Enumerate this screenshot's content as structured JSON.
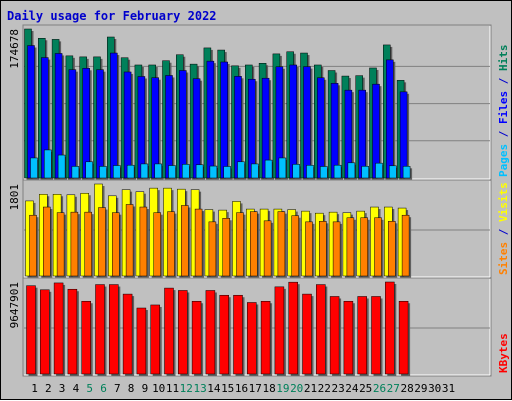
{
  "title": "Daily usage for February 2022",
  "colors": {
    "hits": "#00805a",
    "files": "#0000ff",
    "pages": "#00c0ff",
    "visits": "#ffff00",
    "sites": "#ff8000",
    "kbytes": "#ff0000",
    "title": "#0000cc",
    "weekend_label": "#00805a",
    "panel_bg": "#c0c0c0"
  },
  "chart_data": [
    {
      "type": "bar",
      "panel": "hits-files-pages",
      "ymax_label": "174678",
      "ylim": [
        0,
        174678
      ],
      "y_label_parts": [
        {
          "text": "Pages",
          "color": "#00c0ff"
        },
        {
          "text": " / ",
          "color": "#0000cc"
        },
        {
          "text": "Files",
          "color": "#0000ff"
        },
        {
          "text": " / ",
          "color": "#0000cc"
        },
        {
          "text": "Hits",
          "color": "#00805a"
        }
      ],
      "categories": [
        "1",
        "2",
        "3",
        "4",
        "5",
        "6",
        "7",
        "8",
        "9",
        "10",
        "11",
        "12",
        "13",
        "14",
        "15",
        "16",
        "17",
        "18",
        "19",
        "20",
        "21",
        "22",
        "23",
        "24",
        "25",
        "26",
        "27",
        "28",
        "29",
        "30",
        "31"
      ],
      "series": [
        {
          "name": "Hits",
          "values": [
            174678,
            163800,
            162500,
            143200,
            142000,
            142000,
            165300,
            141000,
            132500,
            132500,
            137500,
            144500,
            133500,
            152500,
            150000,
            131500,
            132500,
            134500,
            145500,
            148000,
            146500,
            132500,
            126000,
            119500,
            120000,
            129000,
            156000,
            114500,
            0,
            0,
            0
          ]
        },
        {
          "name": "Files",
          "values": [
            155300,
            141200,
            146000,
            127000,
            128600,
            127000,
            146500,
            124300,
            119000,
            117600,
            120200,
            126000,
            116400,
            137000,
            136000,
            119200,
            115800,
            117000,
            130400,
            132500,
            130600,
            117500,
            111000,
            103000,
            103000,
            110000,
            138500,
            101000,
            0,
            0,
            0
          ]
        },
        {
          "name": "Pages",
          "values": [
            23500,
            32900,
            26900,
            13600,
            19000,
            13600,
            14600,
            15000,
            16500,
            16500,
            14600,
            16000,
            15500,
            14000,
            13500,
            19000,
            16500,
            21000,
            23500,
            16000,
            14900,
            13500,
            15000,
            17800,
            13700,
            17400,
            14300,
            13700,
            0,
            0,
            0
          ]
        }
      ]
    },
    {
      "type": "bar",
      "panel": "visits-sites",
      "ymax_label": "1801",
      "ylim": [
        0,
        1801
      ],
      "y_label_parts": [
        {
          "text": "Sites",
          "color": "#ff8000"
        },
        {
          "text": " / ",
          "color": "#0000cc"
        },
        {
          "text": "Visits",
          "color": "#ffff00"
        }
      ],
      "categories": [
        "1",
        "2",
        "3",
        "4",
        "5",
        "6",
        "7",
        "8",
        "9",
        "10",
        "11",
        "12",
        "13",
        "14",
        "15",
        "16",
        "17",
        "18",
        "19",
        "20",
        "21",
        "22",
        "23",
        "24",
        "25",
        "26",
        "27",
        "28",
        "29",
        "30",
        "31"
      ],
      "series": [
        {
          "name": "Visits",
          "values": [
            1470,
            1600,
            1600,
            1590,
            1620,
            1801,
            1570,
            1690,
            1650,
            1720,
            1720,
            1700,
            1690,
            1300,
            1290,
            1460,
            1310,
            1310,
            1310,
            1300,
            1270,
            1230,
            1250,
            1240,
            1270,
            1350,
            1350,
            1330,
            0,
            0,
            0
          ]
        },
        {
          "name": "Sites",
          "values": [
            1190,
            1350,
            1240,
            1250,
            1250,
            1340,
            1240,
            1400,
            1350,
            1240,
            1260,
            1380,
            1310,
            1060,
            1130,
            1240,
            1260,
            1080,
            1260,
            1180,
            1060,
            1070,
            1060,
            1140,
            1140,
            1140,
            1070,
            1190,
            0,
            0,
            0
          ]
        }
      ]
    },
    {
      "type": "bar",
      "panel": "kbytes",
      "ymax_label": "9647901",
      "ylim": [
        0,
        9647901
      ],
      "y_label_parts": [
        {
          "text": "KBytes",
          "color": "#ff0000"
        }
      ],
      "categories": [
        "1",
        "2",
        "3",
        "4",
        "5",
        "6",
        "7",
        "8",
        "9",
        "10",
        "11",
        "12",
        "13",
        "14",
        "15",
        "16",
        "17",
        "18",
        "19",
        "20",
        "21",
        "22",
        "23",
        "24",
        "25",
        "26",
        "27",
        "28",
        "29",
        "30",
        "31"
      ],
      "series": [
        {
          "name": "KBytes",
          "values": [
            9260000,
            8830000,
            9550000,
            8890000,
            7630000,
            9380000,
            9380000,
            8380000,
            6920000,
            7240000,
            9010000,
            8760000,
            7630000,
            8760000,
            8260000,
            8260000,
            7500000,
            7630000,
            9140000,
            9630000,
            8380000,
            9380000,
            8130000,
            7630000,
            8130000,
            8130000,
            9647901,
            7630000,
            0,
            0,
            0
          ]
        }
      ]
    }
  ],
  "day_labels": [
    {
      "text": "1",
      "weekend": false
    },
    {
      "text": "2",
      "weekend": false
    },
    {
      "text": "3",
      "weekend": false
    },
    {
      "text": "4",
      "weekend": false
    },
    {
      "text": "5",
      "weekend": true
    },
    {
      "text": "6",
      "weekend": true
    },
    {
      "text": "7",
      "weekend": false
    },
    {
      "text": "8",
      "weekend": false
    },
    {
      "text": "9",
      "weekend": false
    },
    {
      "text": "10",
      "weekend": false
    },
    {
      "text": "11",
      "weekend": false
    },
    {
      "text": "12",
      "weekend": true
    },
    {
      "text": "13",
      "weekend": true
    },
    {
      "text": "14",
      "weekend": false
    },
    {
      "text": "15",
      "weekend": false
    },
    {
      "text": "16",
      "weekend": false
    },
    {
      "text": "17",
      "weekend": false
    },
    {
      "text": "18",
      "weekend": false
    },
    {
      "text": "19",
      "weekend": true
    },
    {
      "text": "20",
      "weekend": true
    },
    {
      "text": "21",
      "weekend": false
    },
    {
      "text": "22",
      "weekend": false
    },
    {
      "text": "23",
      "weekend": false
    },
    {
      "text": "24",
      "weekend": false
    },
    {
      "text": "25",
      "weekend": false
    },
    {
      "text": "26",
      "weekend": true
    },
    {
      "text": "27",
      "weekend": true
    },
    {
      "text": "28",
      "weekend": false
    },
    {
      "text": "29",
      "weekend": false
    },
    {
      "text": "30",
      "weekend": false
    },
    {
      "text": "31",
      "weekend": false
    }
  ]
}
